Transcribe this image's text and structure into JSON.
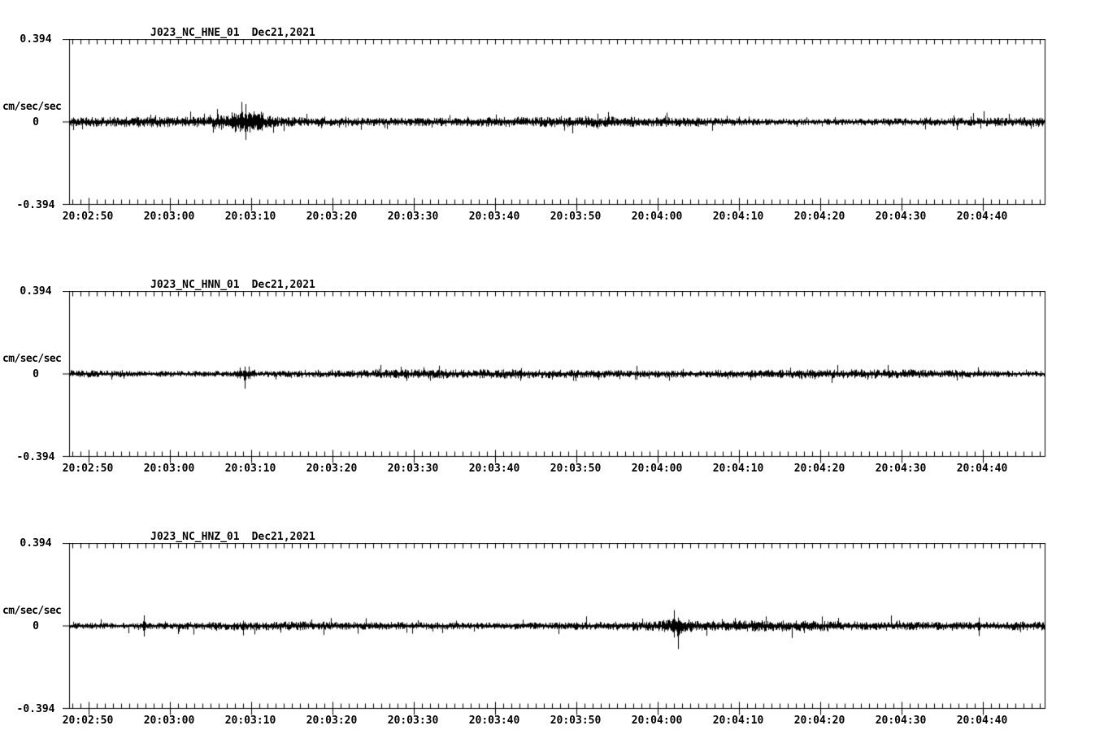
{
  "page": {
    "background": "#ffffff",
    "ink": "#000000"
  },
  "chart_data": [
    {
      "type": "line",
      "title": "J023_NC_HNE_01",
      "date": "Dec21,2021",
      "ylabel": "cm/sec/sec",
      "ylim": [
        -0.394,
        0.394
      ],
      "ytick_values": [
        0.394,
        0,
        -0.394
      ],
      "ytick_labels": [
        "0.394",
        "0",
        "-0.394"
      ],
      "x_start": "20:02:47.7",
      "x_end": "20:04:47.8",
      "x_major_tick_s": 10,
      "x_minor_tick_s": 1,
      "xtick_labels": [
        "20:02:50",
        "20:03:00",
        "20:03:10",
        "20:03:20",
        "20:03:30",
        "20:03:40",
        "20:03:50",
        "20:04:00",
        "20:04:10",
        "20:04:20",
        "20:04:30",
        "20:04:40"
      ],
      "grid": false,
      "legend": false,
      "noise_band": 0.015,
      "events": [
        {
          "time": "20:03:05.3",
          "up": 0.016,
          "down": 0.051
        },
        {
          "time": "20:03:08.9",
          "up": 0.095,
          "down": 0.04
        },
        {
          "time": "20:03:09.4",
          "up": 0.085,
          "down": 0.085
        }
      ],
      "bursts": [
        {
          "start": "20:03:07.5",
          "end": "20:03:11.5",
          "amplitude": 0.026
        },
        {
          "start": "20:03:05.5",
          "end": "20:03:13.0",
          "amplitude": 0.01
        }
      ]
    },
    {
      "type": "line",
      "title": "J023_NC_HNN_01",
      "date": "Dec21,2021",
      "ylabel": "cm/sec/sec",
      "ylim": [
        -0.394,
        0.394
      ],
      "ytick_values": [
        0.394,
        0,
        -0.394
      ],
      "ytick_labels": [
        "0.394",
        "0",
        "-0.394"
      ],
      "x_start": "20:02:47.7",
      "x_end": "20:04:47.8",
      "x_major_tick_s": 10,
      "x_minor_tick_s": 1,
      "xtick_labels": [
        "20:02:50",
        "20:03:00",
        "20:03:10",
        "20:03:20",
        "20:03:30",
        "20:03:40",
        "20:03:50",
        "20:04:00",
        "20:04:10",
        "20:04:20",
        "20:04:30",
        "20:04:40"
      ],
      "grid": false,
      "legend": false,
      "noise_band": 0.013,
      "events": [
        {
          "time": "20:03:09.2",
          "up": 0.035,
          "down": 0.07
        },
        {
          "time": "20:03:08.6",
          "up": 0.03,
          "down": 0.022
        }
      ],
      "bursts": [
        {
          "start": "20:03:08.0",
          "end": "20:03:10.5",
          "amplitude": 0.01
        }
      ]
    },
    {
      "type": "line",
      "title": "J023_NC_HNZ_01",
      "date": "Dec21,2021",
      "ylabel": "cm/sec/sec",
      "ylim": [
        -0.394,
        0.394
      ],
      "ytick_values": [
        0.394,
        0,
        -0.394
      ],
      "ytick_labels": [
        "0.394",
        "0",
        "-0.394"
      ],
      "x_start": "20:02:47.7",
      "x_end": "20:04:47.8",
      "x_major_tick_s": 10,
      "x_minor_tick_s": 1,
      "xtick_labels": [
        "20:02:50",
        "20:03:00",
        "20:03:10",
        "20:03:20",
        "20:03:30",
        "20:03:40",
        "20:03:50",
        "20:04:00",
        "20:04:10",
        "20:04:20",
        "20:04:30",
        "20:04:40"
      ],
      "grid": false,
      "legend": false,
      "noise_band": 0.015,
      "events": [
        {
          "time": "20:02:56.8",
          "up": 0.05,
          "down": 0.05
        },
        {
          "time": "20:03:09.0",
          "up": 0.025,
          "down": 0.045
        },
        {
          "time": "20:04:02.0",
          "up": 0.075,
          "down": 0.055
        },
        {
          "time": "20:04:02.5",
          "up": 0.04,
          "down": 0.11
        },
        {
          "time": "20:04:39.5",
          "up": 0.04,
          "down": 0.048
        }
      ],
      "bursts": [
        {
          "start": "20:04:00.5",
          "end": "20:04:04.5",
          "amplitude": 0.012
        }
      ]
    }
  ]
}
